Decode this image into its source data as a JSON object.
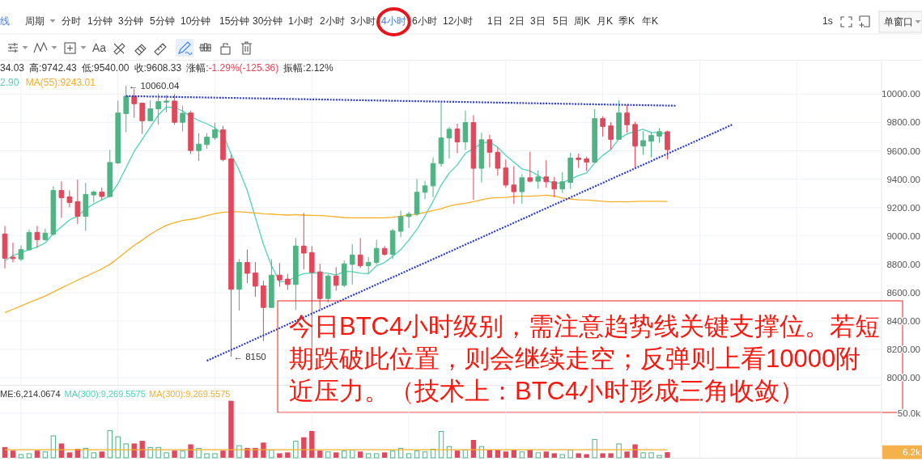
{
  "chart_data": [
    {
      "type": "candlestick",
      "subtitle": "34.03 高:9742.43 低:9540.00 收:9608.33 涨幅:-1.29%(-125.36) 振幅:2.12%",
      "categories": [
        null,
        null,
        null,
        null,
        null,
        null,
        null,
        null,
        null,
        null,
        null,
        null,
        null,
        null,
        null,
        null,
        null,
        null,
        null,
        null,
        null,
        null,
        null,
        null,
        null,
        null,
        null,
        null,
        null,
        null,
        null,
        null,
        null,
        null,
        null,
        null,
        null,
        null,
        null,
        null,
        null,
        null,
        null,
        null,
        null,
        null,
        null,
        null,
        null,
        null,
        null,
        null,
        null,
        null,
        null,
        null,
        null,
        null,
        null,
        null,
        null,
        null,
        null,
        null,
        null,
        null,
        null,
        null,
        null,
        null,
        null,
        null,
        null,
        null,
        null,
        null,
        null,
        null,
        null,
        null,
        null,
        null,
        null,
        null,
        null,
        null,
        null,
        null,
        null,
        null,
        null,
        null,
        null,
        null,
        null,
        null,
        null,
        null,
        null,
        null,
        null,
        null,
        null,
        null,
        null,
        null,
        null,
        null,
        null
      ],
      "ohlc": [
        [
          9014,
          9071,
          8771,
          8843
        ],
        [
          8851,
          8953,
          8813,
          8840
        ],
        [
          8838,
          8933,
          8823,
          8904
        ],
        [
          8902,
          9046,
          8902,
          9025
        ],
        [
          9025,
          9071,
          8916,
          8974
        ],
        [
          8974,
          9052,
          8967,
          9020
        ],
        [
          9012,
          9350,
          9003,
          9321
        ],
        [
          9321,
          9384,
          9128,
          9270
        ],
        [
          9276,
          9321,
          9202,
          9236
        ],
        [
          9242,
          9397,
          9084,
          9139
        ],
        [
          9139,
          9374,
          9035,
          9293
        ],
        [
          9289,
          9321,
          9236,
          9310
        ],
        [
          9310,
          9342,
          9255,
          9278
        ],
        [
          9278,
          9606,
          9270,
          9518
        ],
        [
          9515,
          9953,
          9507,
          9867
        ],
        [
          9863,
          10060.04,
          9731,
          9985
        ],
        [
          9985,
          10038,
          9833,
          9932
        ],
        [
          9936,
          9936,
          9719,
          9812
        ],
        [
          9812,
          9956,
          9812,
          9896
        ],
        [
          9896,
          10004,
          9784,
          9947
        ],
        [
          9943,
          9994,
          9871,
          9951
        ],
        [
          9951,
          10000,
          9784,
          9801
        ],
        [
          9801,
          9918,
          9738,
          9865
        ],
        [
          9867,
          9882,
          9579,
          9602
        ],
        [
          9602,
          9725,
          9528,
          9647
        ],
        [
          9644,
          9725,
          9613,
          9697
        ],
        [
          9693,
          9799,
          9678,
          9748
        ],
        [
          9748,
          9776,
          9526,
          9539
        ],
        [
          9543,
          9572,
          8150,
          8624
        ],
        [
          8624,
          8836,
          8474,
          8813
        ],
        [
          8813,
          8904,
          8667,
          8737
        ],
        [
          8739,
          8817,
          8572,
          8646
        ],
        [
          8648,
          8684,
          8259,
          8496
        ],
        [
          8496,
          8836,
          8496,
          8724
        ],
        [
          8724,
          8809,
          8642,
          8690
        ],
        [
          8696,
          8733,
          8620,
          8658
        ],
        [
          8658,
          8986,
          8478,
          8929
        ],
        [
          8929,
          9162,
          8764,
          8879
        ],
        [
          8883,
          8929,
          8212,
          8743
        ],
        [
          8747,
          8804,
          8487,
          8559
        ],
        [
          8559,
          8733,
          8529,
          8718
        ],
        [
          8718,
          8781,
          8614,
          8652
        ],
        [
          8652,
          8828,
          8639,
          8804
        ],
        [
          8800,
          8942,
          8658,
          8866
        ],
        [
          8866,
          8984,
          8775,
          8790
        ],
        [
          8790,
          8851,
          8737,
          8813
        ],
        [
          8813,
          8972,
          8798,
          8912
        ],
        [
          8912,
          8929,
          8862,
          8870
        ],
        [
          8870,
          9050,
          8836,
          9037
        ],
        [
          9033,
          9179,
          8993,
          9137
        ],
        [
          9137,
          9170,
          9056,
          9154
        ],
        [
          9154,
          9401,
          9141,
          9308
        ],
        [
          9308,
          9388,
          9259,
          9353
        ],
        [
          9353,
          9553,
          9274,
          9511
        ],
        [
          9511,
          9943,
          9488,
          9691
        ],
        [
          9691,
          9767,
          9545,
          9752
        ],
        [
          9754,
          9791,
          9583,
          9663
        ],
        [
          9663,
          9884,
          9606,
          9799
        ],
        [
          9799,
          9852,
          9255,
          9477
        ],
        [
          9477,
          9729,
          9378,
          9678
        ],
        [
          9678,
          9714,
          9482,
          9590
        ],
        [
          9590,
          9621,
          9426,
          9477
        ],
        [
          9479,
          9539,
          9340,
          9359
        ],
        [
          9359,
          9492,
          9226,
          9312
        ],
        [
          9312,
          9435,
          9226,
          9410
        ],
        [
          9410,
          9594,
          9378,
          9386
        ],
        [
          9386,
          9463,
          9334,
          9416
        ],
        [
          9416,
          9534,
          9340,
          9382
        ],
        [
          9382,
          9416,
          9274,
          9331
        ],
        [
          9331,
          9450,
          9302,
          9382
        ],
        [
          9378,
          9587,
          9331,
          9549
        ],
        [
          9549,
          9581,
          9480,
          9539
        ],
        [
          9543,
          9560,
          9458,
          9520
        ],
        [
          9520,
          9894,
          9515,
          9827
        ],
        [
          9827,
          9843,
          9700,
          9772
        ],
        [
          9776,
          9801,
          9609,
          9681
        ],
        [
          9681,
          9956,
          9678,
          9867
        ],
        [
          9867,
          9924,
          9729,
          9784
        ],
        [
          9786,
          9805,
          9482,
          9634
        ],
        [
          9634,
          9738,
          9572,
          9672
        ],
        [
          9668,
          9729,
          9554,
          9708
        ],
        [
          9704,
          9761,
          9657,
          9735
        ],
        [
          9734.03,
          9742.43,
          9540,
          9608.33
        ],
        null,
        null,
        null,
        null,
        null,
        null,
        null,
        null,
        null,
        null,
        null,
        null,
        null,
        null,
        null,
        null,
        null,
        null,
        null,
        null,
        null,
        null,
        null,
        null,
        null,
        null
      ],
      "colors": [
        "#e0485b",
        "#e0485b",
        "#4fb383",
        "#4fb383",
        "#e0485b",
        "#4fb383",
        "#4fb383",
        "#e0485b",
        "#e0485b",
        "#e0485b",
        "#4fb383",
        "#4fb383",
        "#e0485b",
        "#4fb383",
        "#4fb383",
        "#4fb383",
        "#e0485b",
        "#e0485b",
        "#4fb383",
        "#4fb383",
        "#4fb383",
        "#e0485b",
        "#4fb383",
        "#e0485b",
        "#4fb383",
        "#4fb383",
        "#4fb383",
        "#e0485b",
        "#e0485b",
        "#4fb383",
        "#e0485b",
        "#e0485b",
        "#e0485b",
        "#4fb383",
        "#e0485b",
        "#e0485b",
        "#4fb383",
        "#e0485b",
        "#e0485b",
        "#e0485b",
        "#4fb383",
        "#e0485b",
        "#4fb383",
        "#4fb383",
        "#e0485b",
        "#4fb383",
        "#4fb383",
        "#e0485b",
        "#4fb383",
        "#4fb383",
        "#4fb383",
        "#4fb383",
        "#4fb383",
        "#4fb383",
        "#4fb383",
        "#4fb383",
        "#e0485b",
        "#4fb383",
        "#e0485b",
        "#4fb383",
        "#e0485b",
        "#e0485b",
        "#e0485b",
        "#e0485b",
        "#4fb383",
        "#e0485b",
        "#4fb383",
        "#e0485b",
        "#e0485b",
        "#4fb383",
        "#4fb383",
        "#e0485b",
        "#e0485b",
        "#4fb383",
        "#e0485b",
        "#e0485b",
        "#4fb383",
        "#e0485b",
        "#e0485b",
        "#4fb383",
        "#4fb383",
        "#4fb383",
        "#e0485b",
        null,
        null,
        null,
        null,
        null,
        null,
        null,
        null,
        null,
        null,
        null,
        null,
        null,
        null,
        null,
        null,
        null,
        null,
        null,
        null,
        null,
        null,
        null,
        null,
        null,
        null
      ],
      "series": [
        {
          "name": "2.90",
          "type": "line",
          "color": "#4fd2b8",
          "values": [
            8825,
            8862,
            8881,
            8904,
            8923,
            8952,
            9018,
            9065,
            9113,
            9141,
            9189,
            9226,
            9255,
            9283,
            9369,
            9482,
            9596,
            9681,
            9767,
            9852,
            9909,
            9905,
            9881,
            9843,
            9814,
            9791,
            9761,
            9719,
            9577,
            9463,
            9321,
            9132,
            8942,
            8790,
            8677,
            8680,
            8715,
            8734,
            8739,
            8739,
            8737,
            8724,
            8749,
            8749,
            8737,
            8734,
            8790,
            8813,
            8857,
            8904,
            8971,
            9046,
            9141,
            9245,
            9359,
            9444,
            9501,
            9583,
            9615,
            9653,
            9663,
            9625,
            9568,
            9520,
            9473,
            9458,
            9426,
            9393,
            9372,
            9374,
            9401,
            9426,
            9444,
            9515,
            9568,
            9609,
            9685,
            9719,
            9738,
            9752,
            9729,
            9729,
            9719,
            null,
            null,
            null,
            null,
            null,
            null,
            null,
            null,
            null,
            null,
            null,
            null,
            null,
            null,
            null,
            null,
            null,
            null,
            null,
            null,
            null,
            null,
            null,
            null,
            null,
            null
          ]
        },
        {
          "name": "MA(55):9243.01",
          "type": "line",
          "color": "#f5b027",
          "values": [
            8460,
            8483,
            8506,
            8531,
            8553,
            8576,
            8605,
            8633,
            8661,
            8688,
            8715,
            8741,
            8768,
            8800,
            8843,
            8889,
            8933,
            8971,
            9012,
            9046,
            9075,
            9094,
            9109,
            9117,
            9128,
            9143,
            9158,
            9166,
            9170,
            9170,
            9166,
            9162,
            9156,
            9154,
            9151,
            9147,
            9151,
            9147,
            9145,
            9143,
            9141,
            9135,
            9130,
            9128,
            9128,
            9128,
            9128,
            9128,
            9132,
            9139,
            9147,
            9154,
            9166,
            9179,
            9192,
            9211,
            9223,
            9230,
            9242,
            9255,
            9266,
            9270,
            9272,
            9278,
            9280,
            9280,
            9283,
            9287,
            9281,
            9268,
            9261,
            9255,
            9253,
            9249,
            9245,
            9240,
            9242,
            9240,
            9243,
            9245,
            9245,
            9245,
            9243,
            null,
            null,
            null,
            null,
            null,
            null,
            null,
            null,
            null,
            null,
            null,
            null,
            null,
            null,
            null,
            null,
            null,
            null,
            null,
            null,
            null,
            null,
            null,
            null,
            null,
            null
          ]
        },
        {
          "type": "line",
          "color": "#2b3bc9",
          "line_style": "dotted",
          "values": [
            null,
            null,
            null,
            null,
            null,
            null,
            null,
            null,
            null,
            null,
            null,
            null,
            null,
            null,
            null,
            9986,
            9985,
            9984,
            9983,
            9982,
            9981,
            9980,
            9979,
            9978,
            9977,
            9976,
            9975,
            9974,
            9973,
            9972,
            9971,
            9970,
            9969,
            9968,
            9967,
            9966,
            9965,
            9964,
            9963,
            9962,
            9961,
            9960,
            9959,
            9958,
            9957,
            9956,
            9955,
            9954,
            9953,
            9952,
            9951,
            9950,
            9949,
            9948,
            9947,
            9946,
            9945,
            9944,
            9943,
            9942,
            9941,
            9940,
            9939,
            9938,
            9937,
            9936,
            9935,
            9934,
            9933,
            9932,
            9931,
            9930,
            9929,
            9928,
            9927,
            9926,
            9925,
            9924,
            9923,
            9922,
            9921,
            9920,
            9919,
            9918,
            null,
            null,
            null,
            null,
            null,
            null,
            null,
            null,
            null,
            null,
            null,
            null,
            null,
            null,
            null,
            null,
            null,
            null,
            null,
            null,
            null,
            null,
            null,
            null,
            null
          ]
        },
        {
          "type": "line",
          "color": "#2b3bc9",
          "line_style": "dotted",
          "values": [
            null,
            null,
            null,
            null,
            null,
            null,
            null,
            null,
            null,
            null,
            null,
            null,
            null,
            null,
            null,
            null,
            null,
            null,
            null,
            null,
            null,
            null,
            null,
            null,
            null,
            8120,
            8146,
            8171,
            8197,
            8222,
            8248,
            8274,
            8299,
            8325,
            8350,
            8376,
            8402,
            8427,
            8453,
            8478,
            8504,
            8530,
            8555,
            8581,
            8606,
            8632,
            8658,
            8683,
            8709,
            8734,
            8760,
            8786,
            8811,
            8837,
            8862,
            8888,
            8914,
            8939,
            8965,
            8990,
            9016,
            9042,
            9067,
            9093,
            9118,
            9144,
            9170,
            9195,
            9221,
            9246,
            9272,
            9298,
            9323,
            9349,
            9374,
            9400,
            9426,
            9451,
            9477,
            9502,
            9528,
            9554,
            9579,
            9605,
            9630,
            9656,
            9682,
            9707,
            9733,
            9758,
            9784,
            null,
            null,
            null,
            null,
            null,
            null,
            null,
            null,
            null,
            null,
            null,
            null,
            null,
            null,
            null,
            null,
            null,
            null
          ]
        }
      ],
      "ylim": [
        7950,
        10230
      ],
      "yticks": [
        {
          "value": 10000,
          "label": "10000.00"
        },
        {
          "value": 9800,
          "label": "9800.00"
        },
        {
          "value": 9600,
          "label": "9600.00"
        },
        {
          "value": 9400,
          "label": "9400.00"
        },
        {
          "value": 9200,
          "label": "9200.00"
        },
        {
          "value": 9000,
          "label": "9000.00"
        },
        {
          "value": 8800,
          "label": "8800.00"
        },
        {
          "value": 8600,
          "label": "8600.00"
        },
        {
          "value": 8400,
          "label": "8400.00"
        },
        {
          "value": 8200,
          "label": "8200.00"
        },
        {
          "value": 8000,
          "label": "8000.00"
        }
      ],
      "grid": true,
      "legend": "top left",
      "tick_labels": "y",
      "annotations": [
        "线",
        "周期",
        "分时",
        "1分钟",
        "3分钟",
        "5分钟",
        "10分钟",
        "15分钟",
        "30分钟",
        "1小时",
        "2小时",
        "3小时",
        "4小时",
        "6小时",
        "12小时",
        "1日",
        "2日",
        "3日",
        "5日",
        "周K",
        "月K",
        "季K",
        "年K",
        "1s",
        "单窗口",
        "Aa",
        "← 10060.04",
        "← 8150",
        "今日BTC4小时级别，需注意趋势线关键支撑位。若短期跌破此位置，则会继续走空；反弹则上看10000附近压力。（技术上：BTC4小时形成三角收敛）"
      ]
    },
    {
      "type": "bar",
      "categories": [
        null,
        null,
        null,
        null,
        null,
        null,
        null,
        null,
        null,
        null,
        null,
        null,
        null,
        null,
        null,
        null,
        null,
        null,
        null,
        null,
        null,
        null,
        null,
        null,
        null,
        null,
        null,
        null,
        null,
        null,
        null,
        null,
        null,
        null,
        null,
        null,
        null,
        null,
        null,
        null,
        null,
        null,
        null,
        null,
        null,
        null,
        null,
        null,
        null,
        null,
        null,
        null,
        null,
        null,
        null,
        null,
        null,
        null,
        null,
        null,
        null,
        null,
        null,
        null,
        null,
        null,
        null,
        null,
        null,
        null,
        null,
        null,
        null,
        null,
        null,
        null,
        null,
        null,
        null,
        null,
        null,
        null,
        null,
        null,
        null,
        null,
        null,
        null,
        null,
        null,
        null,
        null,
        null,
        null,
        null,
        null,
        null,
        null,
        null,
        null,
        null,
        null,
        null,
        null,
        null,
        null,
        null,
        null,
        null
      ],
      "series": [
        {
          "type": "bar",
          "colors": [
            "#e0485b",
            "#e0485b",
            "#4fb383",
            "#4fb383",
            "#e0485b",
            "#4fb383",
            "#4fb383",
            "#e0485b",
            "#e0485b",
            "#e0485b",
            "#4fb383",
            "#4fb383",
            "#e0485b",
            "#4fb383",
            "#4fb383",
            "#4fb383",
            "#e0485b",
            "#e0485b",
            "#4fb383",
            "#4fb383",
            "#4fb383",
            "#e0485b",
            "#4fb383",
            "#e0485b",
            "#4fb383",
            "#4fb383",
            "#4fb383",
            "#e0485b",
            "#e0485b",
            "#4fb383",
            "#e0485b",
            "#e0485b",
            "#e0485b",
            "#4fb383",
            "#e0485b",
            "#e0485b",
            "#4fb383",
            "#e0485b",
            "#e0485b",
            "#e0485b",
            "#4fb383",
            "#e0485b",
            "#4fb383",
            "#4fb383",
            "#e0485b",
            "#4fb383",
            "#4fb383",
            "#e0485b",
            "#4fb383",
            "#4fb383",
            "#4fb383",
            "#4fb383",
            "#4fb383",
            "#4fb383",
            "#4fb383",
            "#4fb383",
            "#e0485b",
            "#4fb383",
            "#e0485b",
            "#4fb383",
            "#e0485b",
            "#e0485b",
            "#e0485b",
            "#e0485b",
            "#4fb383",
            "#e0485b",
            "#4fb383",
            "#e0485b",
            "#e0485b",
            "#4fb383",
            "#4fb383",
            "#e0485b",
            "#e0485b",
            "#4fb383",
            "#e0485b",
            "#e0485b",
            "#4fb383",
            "#e0485b",
            "#e0485b",
            "#4fb383",
            "#4fb383",
            "#4fb383",
            "#e0485b",
            null,
            null,
            null,
            null,
            null,
            null,
            null,
            null,
            null,
            null,
            null,
            null,
            null,
            null,
            null,
            null,
            null,
            null,
            null,
            null,
            null,
            null,
            null,
            null,
            null,
            null
          ],
          "values": [
            12000,
            8000,
            4000,
            5000,
            8000,
            7000,
            25000,
            16000,
            6000,
            10000,
            11000,
            6000,
            7000,
            31000,
            24000,
            16000,
            16000,
            19000,
            12000,
            12000,
            6000,
            8000,
            8000,
            15000,
            11000,
            5000,
            5000,
            8000,
            64000,
            14000,
            11000,
            11000,
            17000,
            9000,
            5000,
            6000,
            19000,
            23000,
            30000,
            8000,
            7000,
            6000,
            8000,
            9000,
            7000,
            5000,
            5000,
            6000,
            8000,
            11000,
            5000,
            8000,
            7000,
            10000,
            30000,
            13000,
            8000,
            9000,
            20000,
            13000,
            9000,
            9000,
            7000,
            9000,
            7000,
            9000,
            6000,
            7000,
            5000,
            4000,
            9000,
            5000,
            4000,
            21000,
            5000,
            5000,
            16000,
            7000,
            15000,
            6000,
            6000,
            3000,
            6214,
            null,
            null,
            null,
            null,
            null,
            null,
            null,
            null,
            null,
            null,
            null,
            null,
            null,
            null,
            null,
            null,
            null,
            null,
            null,
            null,
            null,
            null,
            null,
            null,
            null,
            null
          ]
        },
        {
          "type": "line",
          "name": "MA(300):9,269.5575",
          "color": "#f5b027",
          "values": [
            9000,
            9000,
            9000,
            9000,
            9000,
            9000,
            9000,
            9000,
            9000,
            9000,
            9000,
            9000,
            9000,
            9000,
            9000,
            9000,
            9000,
            9000,
            9000,
            9000,
            9000,
            9000,
            9000,
            9000,
            9000,
            9000,
            9000,
            9000,
            9000,
            9000,
            9000,
            9000,
            9000,
            9000,
            9000,
            9000,
            9000,
            9000,
            9000,
            9000,
            9000,
            9000,
            9000,
            9000,
            9000,
            9000,
            9000,
            9000,
            9000,
            9000,
            9000,
            9000,
            9000,
            9000,
            9000,
            9000,
            9000,
            9000,
            9000,
            9000,
            9000,
            9000,
            9000,
            9000,
            9000,
            9000,
            9000,
            9000,
            9000,
            9000,
            9000,
            9000,
            9000,
            9000,
            9000,
            9000,
            9000,
            9000,
            9000,
            9000,
            9000,
            9000,
            9000,
            null,
            null,
            null,
            null,
            null,
            null,
            null,
            null,
            null,
            null,
            null,
            null,
            null,
            null,
            null,
            null,
            null,
            null,
            null,
            null,
            null,
            null,
            null,
            null,
            null,
            null
          ]
        }
      ],
      "ylim": [
        0,
        80000
      ],
      "yticks": [
        {
          "value": 50000,
          "label": "50.0k"
        }
      ],
      "grid": true,
      "legend": "top left",
      "tick_labels": "y",
      "annotations": [
        "ME:6,214.0674",
        "MA(300):9,269.5575",
        "6.2k"
      ]
    }
  ]
}
